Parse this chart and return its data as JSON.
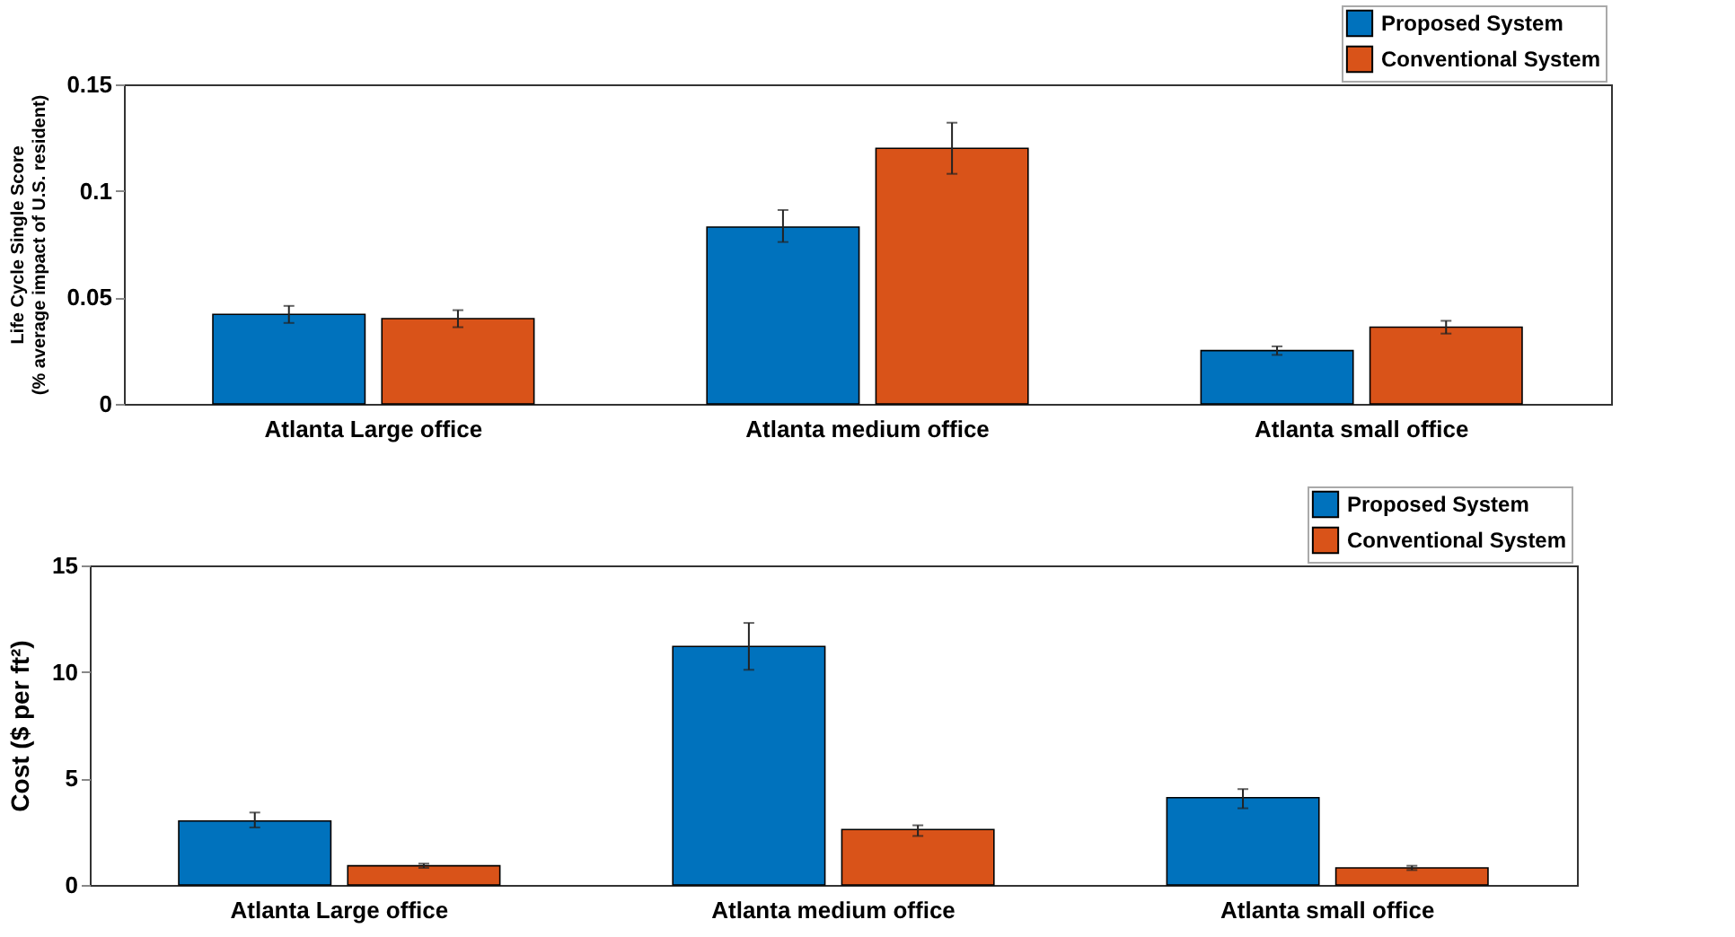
{
  "chart_data": [
    {
      "type": "bar",
      "ylabel": "Life Cycle Single Score\n(% average impact of U.S. resident)",
      "categories": [
        "Atlanta Large office",
        "Atlanta medium office",
        "Atlanta small office"
      ],
      "series": [
        {
          "name": "Proposed System",
          "color": "#0072bd",
          "values": [
            0.042,
            0.083,
            0.025
          ],
          "errors": [
            [
              0.038,
              0.046
            ],
            [
              0.076,
              0.091
            ],
            [
              0.023,
              0.027
            ]
          ]
        },
        {
          "name": "Conventional System",
          "color": "#d95319",
          "values": [
            0.04,
            0.12,
            0.036
          ],
          "errors": [
            [
              0.036,
              0.044
            ],
            [
              0.108,
              0.132
            ],
            [
              0.033,
              0.039
            ]
          ]
        }
      ],
      "ylim": [
        0,
        0.15
      ],
      "yticks": [
        0,
        0.05,
        0.1,
        0.15
      ],
      "legend": "top right"
    },
    {
      "type": "bar",
      "ylabel": "Cost ($ per ft²)",
      "categories": [
        "Atlanta Large office",
        "Atlanta medium office",
        "Atlanta small office"
      ],
      "series": [
        {
          "name": "Proposed System",
          "color": "#0072bd",
          "values": [
            3.0,
            11.2,
            4.1
          ],
          "errors": [
            [
              2.7,
              3.4
            ],
            [
              10.1,
              12.3
            ],
            [
              3.6,
              4.5
            ]
          ]
        },
        {
          "name": "Conventional System",
          "color": "#d95319",
          "values": [
            0.9,
            2.6,
            0.8
          ],
          "errors": [
            [
              0.8,
              1.0
            ],
            [
              2.3,
              2.8
            ],
            [
              0.7,
              0.9
            ]
          ]
        }
      ],
      "ylim": [
        0,
        15
      ],
      "yticks": [
        0,
        5,
        10,
        15
      ],
      "legend": "top right"
    }
  ]
}
